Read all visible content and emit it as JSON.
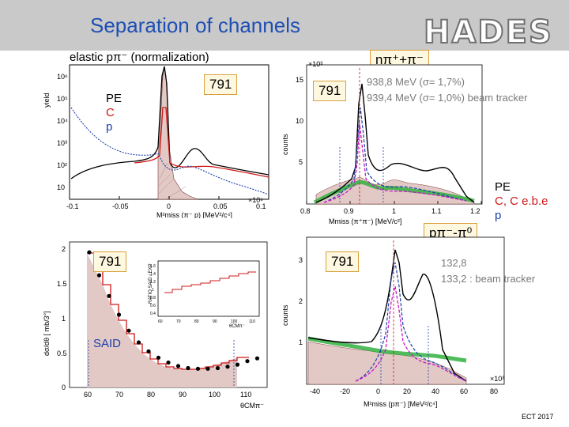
{
  "slide": {
    "title": "Separation of channels",
    "logo": "HADES",
    "footer": "ECT 2017"
  },
  "labels": {
    "elastic": "elastic pπ⁻ (normalization)",
    "top_right_channel": "nπ⁺+π⁻",
    "bottom_right_channel": "pπ⁻-π⁰",
    "beam_791": "791",
    "legend_left_pe": "PE",
    "legend_left_c": "C",
    "legend_left_p": "p",
    "legend_right_pe": "PE",
    "legend_right_c": "C, C e.b.e",
    "legend_right_p": "p",
    "top_mass_1": "938,8 MeV (σ= 1,7%)",
    "top_mass_2": "939,4 MeV (σ= 1,0%) beam tracker",
    "bottom_mass_1": "132,8",
    "bottom_mass_2": "133,2 : beam tracker",
    "said": "SAID"
  },
  "chart_data": [
    {
      "type": "line",
      "title": "",
      "xlabel": "M²miss (π⁻ p) [MeV²/c⁴]",
      "ylabel": "yield",
      "x_ticks": [
        "-0.1",
        "-0.05",
        "0",
        "0.05",
        "0.1"
      ],
      "y_ticks": [
        "10",
        "10²",
        "10³",
        "10⁴",
        "10⁵",
        "10⁶"
      ],
      "xlim": [
        -0.1,
        0.1
      ],
      "y_scale": "log",
      "axis_multiplier": "×10⁶"
    },
    {
      "type": "line",
      "title": "",
      "xlabel": "Mmiss (π⁺π⁻) [MeV/c²]",
      "ylabel": "counts",
      "x_ticks": [
        "0.8",
        "0.9",
        "1",
        "1.1",
        "1.2"
      ],
      "y_ticks": [
        "5",
        "10",
        "15"
      ],
      "axis_multiplier": "×10³",
      "xlim": [
        0.8,
        1.2
      ],
      "ylim": [
        0,
        17
      ]
    },
    {
      "type": "scatter",
      "title": "",
      "xlabel": "θCMπ⁻",
      "ylabel": "dσ/dθ [ mb/3°]",
      "x_ticks": [
        "60",
        "70",
        "80",
        "90",
        "100",
        "110"
      ],
      "y_ticks": [
        "0",
        "0.5",
        "1",
        "1.5",
        "2"
      ],
      "xlim": [
        55,
        115
      ],
      "ylim": [
        0,
        2.1
      ],
      "inset_ylabel": "RATIO SAID / EXP",
      "inset_xlabel": "θCMπ⁻",
      "inset_x_ticks": [
        "60",
        "70",
        "80",
        "90",
        "100",
        "110"
      ],
      "inset_y_ticks": [
        "0.4",
        "0.6",
        "0.8",
        "1",
        "1.2",
        "1.4",
        "1.6"
      ],
      "points": [
        {
          "x": 61,
          "y": 1.95
        },
        {
          "x": 64,
          "y": 1.62
        },
        {
          "x": 67,
          "y": 1.32
        },
        {
          "x": 70,
          "y": 1.05
        },
        {
          "x": 73,
          "y": 0.82
        },
        {
          "x": 76,
          "y": 0.65
        },
        {
          "x": 79,
          "y": 0.52
        },
        {
          "x": 82,
          "y": 0.43
        },
        {
          "x": 85,
          "y": 0.36
        },
        {
          "x": 88,
          "y": 0.31
        },
        {
          "x": 91,
          "y": 0.28
        },
        {
          "x": 94,
          "y": 0.27
        },
        {
          "x": 97,
          "y": 0.27
        },
        {
          "x": 100,
          "y": 0.28
        },
        {
          "x": 103,
          "y": 0.3
        },
        {
          "x": 106,
          "y": 0.33
        },
        {
          "x": 109,
          "y": 0.38
        },
        {
          "x": 112,
          "y": 0.42
        }
      ]
    },
    {
      "type": "line",
      "title": "",
      "xlabel": "M²miss (pπ⁻) [MeV²/c⁴]",
      "ylabel": "counts",
      "x_ticks": [
        "-40",
        "-20",
        "0",
        "20",
        "40",
        "60",
        "80"
      ],
      "y_ticks": [
        "1",
        "2",
        "3"
      ],
      "axis_multiplier": "×10³",
      "xlim": [
        -45,
        85
      ],
      "ylim": [
        0,
        3.6
      ]
    }
  ]
}
